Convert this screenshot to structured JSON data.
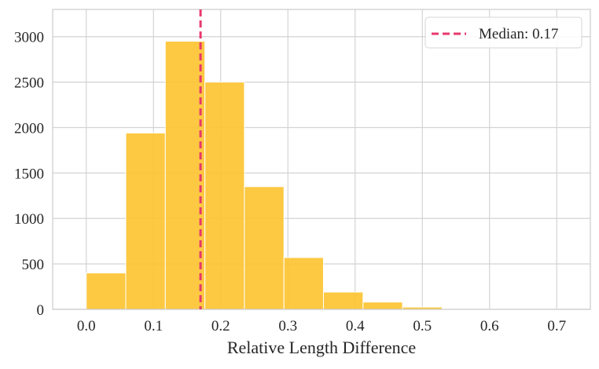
{
  "chart_data": {
    "type": "bar",
    "subtype": "histogram",
    "title": "",
    "xlabel": "Relative Length Difference",
    "ylabel": "",
    "xlim": [
      -0.05,
      0.75
    ],
    "ylim": [
      0,
      3300
    ],
    "xticks": [
      "0.0",
      "0.1",
      "0.2",
      "0.3",
      "0.4",
      "0.5",
      "0.6",
      "0.7"
    ],
    "yticks": [
      "0",
      "500",
      "1000",
      "1500",
      "2000",
      "2500",
      "3000"
    ],
    "grid": true,
    "bin_edges": [
      0.0,
      0.0588,
      0.1176,
      0.1765,
      0.2353,
      0.2941,
      0.3529,
      0.4118,
      0.4706,
      0.5294,
      0.5882,
      0.6471,
      0.7059
    ],
    "values": [
      400,
      1940,
      2950,
      2500,
      1350,
      570,
      190,
      80,
      25,
      8,
      4,
      2
    ],
    "bar_color": "#FDC32D",
    "median": {
      "value": 0.17,
      "label": "Median: 0.17",
      "color": "#E8386D"
    },
    "legend_position": "top-right"
  }
}
